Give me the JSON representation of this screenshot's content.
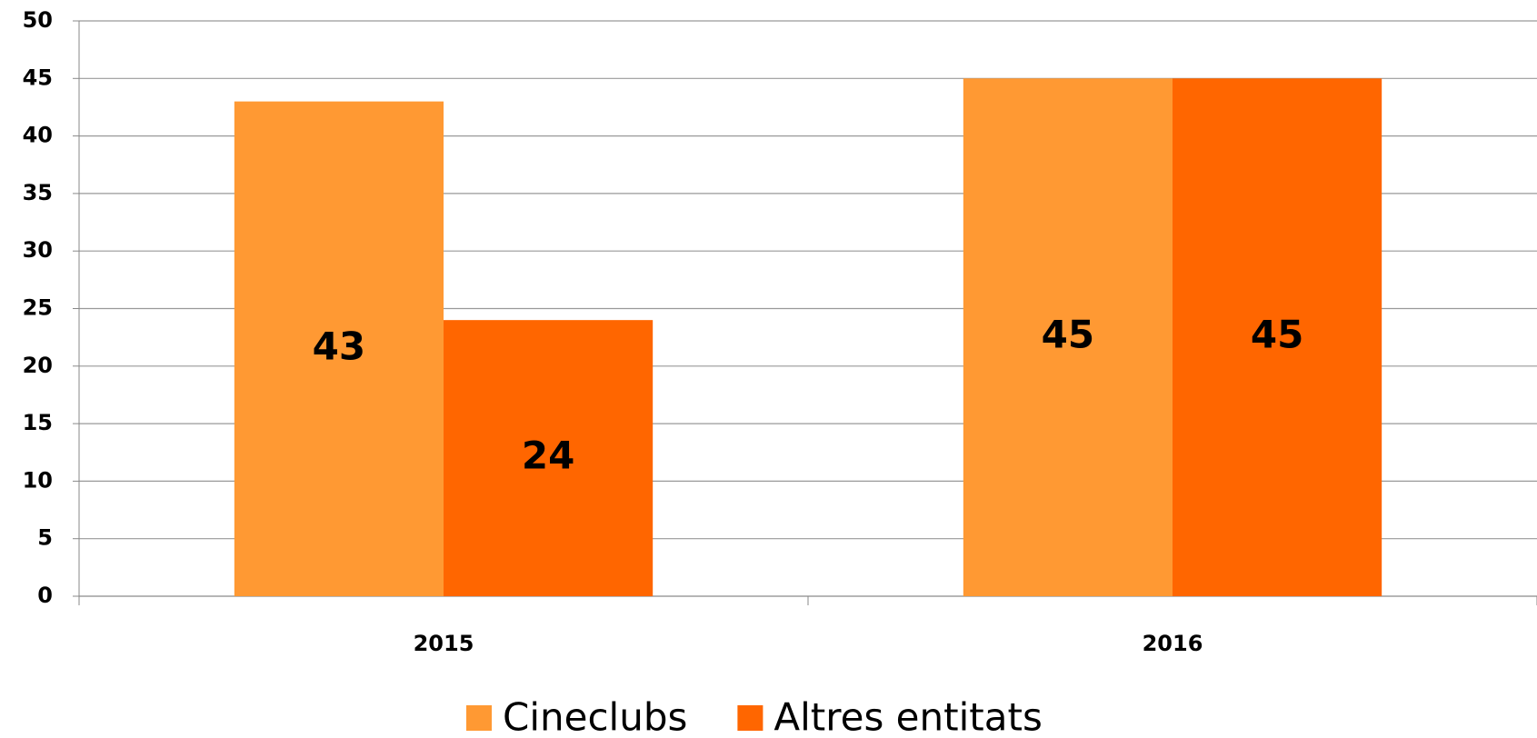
{
  "chart_data": {
    "type": "bar",
    "categories": [
      "2015",
      "2016"
    ],
    "series": [
      {
        "name": "Cineclubs",
        "color": "#ff9933",
        "values": [
          43,
          45
        ]
      },
      {
        "name": "Altres entitats",
        "color": "#ff6600",
        "values": [
          24,
          45
        ]
      }
    ],
    "ylim": [
      0,
      50
    ],
    "yticks": [
      0,
      5,
      10,
      15,
      20,
      25,
      30,
      35,
      40,
      45,
      50
    ],
    "grid": true,
    "legend": "bottom"
  }
}
